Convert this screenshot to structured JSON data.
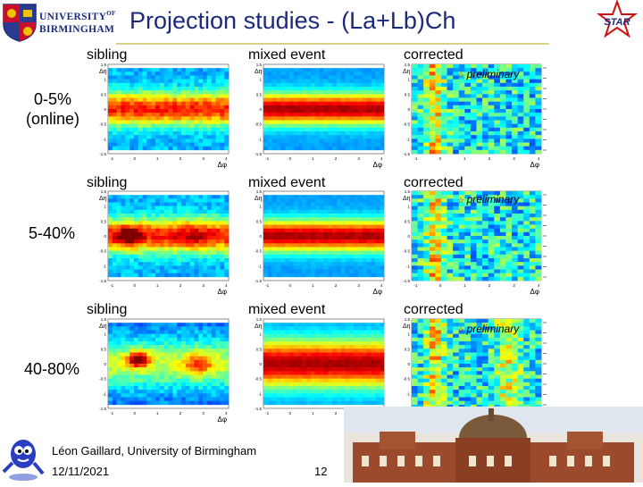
{
  "slide": {
    "title": "Projection studies - (La+Lb)Ch",
    "university": {
      "line1": "UNIVERSITY",
      "line1_suffix": "OF",
      "line2": "BIRMINGHAM"
    },
    "star_logo_text": "STAR",
    "footer": {
      "author": "Léon Gaillard, University of Birmingham",
      "date": "12/11/2021",
      "page": "12"
    }
  },
  "rows": [
    {
      "label": "0-5% (online)",
      "columns": [
        "sibling",
        "mixed event",
        "corrected"
      ],
      "preliminary": "preliminary"
    },
    {
      "label": "5-40%",
      "columns": [
        "sibling",
        "mixed event",
        "corrected"
      ],
      "preliminary": "preliminary"
    },
    {
      "label": "40-80%",
      "columns": [
        "sibling",
        "mixed event",
        "corrected"
      ],
      "preliminary": "preliminary"
    }
  ],
  "axes": {
    "x_label": "Δφ",
    "y_label": "Δη",
    "y_ticks": [
      "1.5",
      "1",
      "0.5",
      "0",
      "-0.5",
      "-1",
      "-1.5"
    ],
    "x_ticks": [
      "-1",
      "0",
      "1",
      "2",
      "3",
      "4"
    ]
  },
  "colors": {
    "title": "#1b2a7a",
    "rule": "#d9d08a",
    "star_red": "#cc1111"
  }
}
